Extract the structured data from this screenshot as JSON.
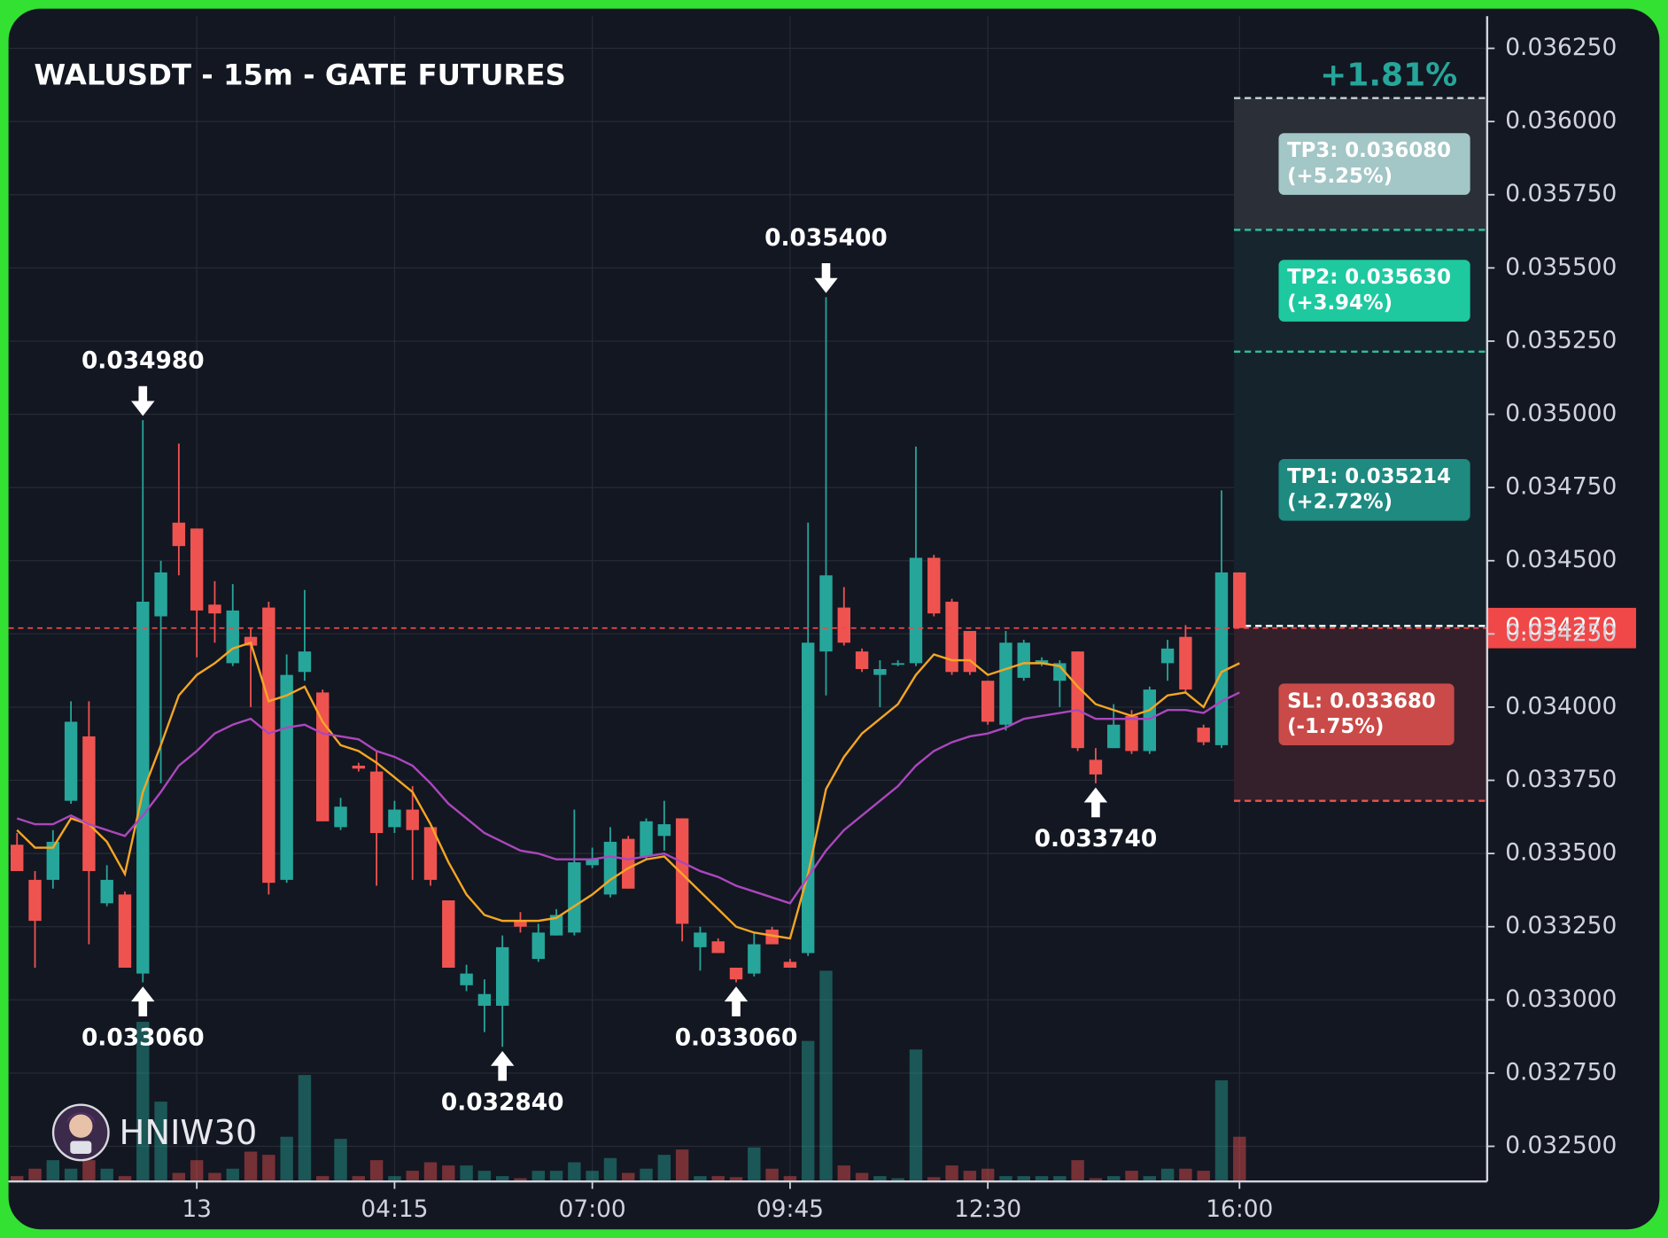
{
  "chart_data": {
    "type": "candlestick",
    "title": "WALUSDT - 15m - GATE FUTURES",
    "change": "+1.81%",
    "watermark": "HNIW30",
    "categories": [
      null,
      null,
      null,
      null,
      null,
      null,
      null,
      null,
      null,
      null,
      "13",
      null,
      null,
      null,
      null,
      null,
      null,
      null,
      null,
      null,
      null,
      "04:15",
      null,
      null,
      null,
      null,
      null,
      null,
      null,
      null,
      null,
      null,
      "07:00",
      null,
      null,
      null,
      null,
      null,
      null,
      null,
      null,
      null,
      null,
      "09:45",
      null,
      null,
      null,
      null,
      null,
      null,
      null,
      null,
      null,
      null,
      "12:30",
      null,
      null,
      null,
      null,
      null,
      null,
      null,
      null,
      null,
      null,
      null,
      null,
      null,
      "16:00"
    ],
    "open": [
      0.03353,
      0.03341,
      0.03341,
      0.03368,
      0.0339,
      0.03333,
      0.03336,
      0.03309,
      0.03431,
      0.03463,
      0.03461,
      0.03435,
      0.03415,
      0.03424,
      0.03434,
      0.03341,
      0.03412,
      0.03405,
      0.03359,
      0.0338,
      0.03378,
      0.03359,
      0.03365,
      0.03359,
      0.03334,
      0.03305,
      0.03298,
      0.03298,
      0.03327,
      0.03314,
      0.03322,
      0.03323,
      0.03346,
      0.03336,
      0.03355,
      0.03349,
      0.03356,
      0.03362,
      0.03318,
      0.0332,
      0.03311,
      0.03309,
      0.03324,
      0.03313,
      0.03316,
      0.03419,
      0.03434,
      0.03419,
      0.03411,
      0.03415,
      0.03415,
      0.03451,
      0.03436,
      0.03426,
      0.03409,
      0.03394,
      0.0341,
      0.03415,
      0.03409,
      0.03419,
      0.03382,
      0.03386,
      0.03397,
      0.03385,
      0.03415,
      0.03424,
      0.03393,
      0.03387,
      0.03446
    ],
    "high": [
      0.03357,
      0.03344,
      0.03358,
      0.03402,
      0.03402,
      0.03346,
      0.03337,
      0.03498,
      0.0345,
      0.0349,
      0.03461,
      0.03443,
      0.03442,
      0.03427,
      0.03436,
      0.03418,
      0.0344,
      0.03406,
      0.03369,
      0.03381,
      0.03385,
      0.03368,
      0.03373,
      0.03359,
      0.03334,
      0.03312,
      0.03307,
      0.03322,
      0.0333,
      0.03326,
      0.03331,
      0.03365,
      0.03352,
      0.03359,
      0.03356,
      0.03362,
      0.03368,
      0.03362,
      0.03325,
      0.03321,
      0.03311,
      0.03323,
      0.03325,
      0.03314,
      0.03463,
      0.0354,
      0.03441,
      0.0342,
      0.03416,
      0.03416,
      0.03489,
      0.03452,
      0.03437,
      0.03426,
      0.03409,
      0.03426,
      0.03423,
      0.03417,
      0.03416,
      0.03419,
      0.03386,
      0.03401,
      0.03399,
      0.03407,
      0.03423,
      0.03428,
      0.03394,
      0.03474,
      0.03446
    ],
    "low": [
      0.03344,
      0.03311,
      0.03338,
      0.03367,
      0.03319,
      0.03332,
      0.03311,
      0.03306,
      0.03374,
      0.03445,
      0.03417,
      0.03422,
      0.03414,
      0.034,
      0.03336,
      0.0334,
      0.03409,
      0.03361,
      0.03358,
      0.03378,
      0.03339,
      0.03357,
      0.03341,
      0.03339,
      0.03311,
      0.03303,
      0.03289,
      0.03284,
      0.03323,
      0.03313,
      0.03322,
      0.03322,
      0.03345,
      0.03335,
      0.03338,
      0.03348,
      0.03351,
      0.0332,
      0.0331,
      0.03316,
      0.03306,
      0.03308,
      0.03319,
      0.03311,
      0.03315,
      0.03404,
      0.03421,
      0.03412,
      0.034,
      0.03414,
      0.03414,
      0.03431,
      0.03411,
      0.03411,
      0.03394,
      0.03392,
      0.03409,
      0.03414,
      0.034,
      0.03385,
      0.03374,
      0.03386,
      0.03384,
      0.03384,
      0.03409,
      0.03405,
      0.03387,
      0.03386,
      0.03427
    ],
    "close": [
      0.03344,
      0.03327,
      0.03354,
      0.03395,
      0.03344,
      0.03341,
      0.03311,
      0.03436,
      0.03446,
      0.03455,
      0.03433,
      0.03432,
      0.03433,
      0.03421,
      0.0334,
      0.03411,
      0.03419,
      0.03361,
      0.03366,
      0.03379,
      0.03357,
      0.03365,
      0.03358,
      0.03341,
      0.03311,
      0.03309,
      0.03302,
      0.03318,
      0.03325,
      0.03323,
      0.03329,
      0.03347,
      0.03348,
      0.03354,
      0.03338,
      0.03361,
      0.0336,
      0.03326,
      0.03323,
      0.03316,
      0.03307,
      0.03319,
      0.03319,
      0.03311,
      0.03422,
      0.03445,
      0.03422,
      0.03413,
      0.03413,
      0.03415,
      0.03451,
      0.03432,
      0.03412,
      0.03412,
      0.03395,
      0.03422,
      0.03422,
      0.03416,
      0.03415,
      0.03386,
      0.03377,
      0.03394,
      0.03385,
      0.03406,
      0.0342,
      0.03406,
      0.03388,
      0.03446,
      0.03427
    ],
    "volume": [
      5,
      12,
      20,
      12,
      20,
      12,
      5,
      150,
      75,
      8,
      20,
      8,
      12,
      28,
      25,
      42,
      100,
      5,
      40,
      5,
      20,
      5,
      10,
      18,
      15,
      15,
      10,
      5,
      3,
      10,
      10,
      18,
      10,
      22,
      8,
      12,
      25,
      30,
      5,
      5,
      4,
      32,
      12,
      5,
      132,
      198,
      15,
      8,
      5,
      3,
      124,
      4,
      15,
      10,
      12,
      5,
      5,
      5,
      5,
      20,
      3,
      5,
      10,
      5,
      12,
      12,
      10,
      95,
      42
    ],
    "volume_ylim": [
      0,
      1095
    ],
    "up_color": "#26a69a",
    "down_color": "#ef5350",
    "moving_averages": [
      {
        "color": "#f5a623",
        "values": [
          0.03358,
          0.03352,
          0.03352,
          0.03362,
          0.0336,
          0.03354,
          0.03343,
          0.03371,
          0.03387,
          0.03404,
          0.03411,
          0.03415,
          0.0342,
          0.03422,
          0.03402,
          0.03404,
          0.03407,
          0.03395,
          0.03387,
          0.03385,
          0.03381,
          0.03376,
          0.03371,
          0.0336,
          0.03347,
          0.03336,
          0.03329,
          0.03327,
          0.03327,
          0.03327,
          0.03328,
          0.03332,
          0.03336,
          0.03341,
          0.03345,
          0.03348,
          0.03349,
          0.03343,
          0.03337,
          0.03331,
          0.03325,
          0.03323,
          0.03322,
          0.03321,
          0.03343,
          0.03372,
          0.03383,
          0.03391,
          0.03396,
          0.03401,
          0.03411,
          0.03418,
          0.03416,
          0.03416,
          0.03411,
          0.03413,
          0.03415,
          0.03415,
          0.03414,
          0.03407,
          0.03401,
          0.03399,
          0.03397,
          0.03399,
          0.03404,
          0.03405,
          0.034,
          0.03412,
          0.03415
        ]
      },
      {
        "color": "#ab47bc",
        "values": [
          0.03362,
          0.0336,
          0.0336,
          0.03363,
          0.0336,
          0.03358,
          0.03356,
          0.03363,
          0.03371,
          0.0338,
          0.03385,
          0.03391,
          0.03394,
          0.03396,
          0.03391,
          0.03393,
          0.03394,
          0.03391,
          0.0339,
          0.03389,
          0.03385,
          0.03383,
          0.0338,
          0.03374,
          0.03367,
          0.03362,
          0.03357,
          0.03354,
          0.03351,
          0.0335,
          0.03348,
          0.03348,
          0.03348,
          0.03349,
          0.03348,
          0.03349,
          0.0335,
          0.03347,
          0.03344,
          0.03342,
          0.03339,
          0.03337,
          0.03335,
          0.03333,
          0.03342,
          0.03351,
          0.03358,
          0.03363,
          0.03368,
          0.03373,
          0.0338,
          0.03385,
          0.03388,
          0.0339,
          0.03391,
          0.03393,
          0.03396,
          0.03397,
          0.03398,
          0.03399,
          0.03396,
          0.03396,
          0.03396,
          0.03396,
          0.03399,
          0.03399,
          0.03398,
          0.03402,
          0.03405
        ]
      }
    ],
    "annotations": [
      {
        "x": 7,
        "value": 0.03498,
        "label": "0.034980",
        "side": "high"
      },
      {
        "x": 7,
        "value": 0.03306,
        "label": "0.033060",
        "side": "low"
      },
      {
        "x": 27,
        "value": 0.03284,
        "label": "0.032840",
        "side": "low"
      },
      {
        "x": 40,
        "value": 0.03306,
        "label": "0.033060",
        "side": "low"
      },
      {
        "x": 45,
        "value": 0.0354,
        "label": "0.035400",
        "side": "high"
      },
      {
        "x": 60,
        "value": 0.03374,
        "label": "0.033740",
        "side": "low"
      }
    ],
    "last_price": {
      "value": 0.03427,
      "label": "0.034270",
      "color": "#f04848"
    },
    "targets": [
      {
        "label": "TP3: 0.036080",
        "change": "(+5.25%)",
        "value": 0.03608,
        "color": "#a3c6c6",
        "line_color": "#c9d4d8",
        "zone_color": "#2a2f38"
      },
      {
        "label": "TP2: 0.035630",
        "change": "(+3.94%)",
        "value": 0.03563,
        "color": "#1ec9a0",
        "line_color": "#2bbfa0",
        "zone_color": "#17262e"
      },
      {
        "label": "TP1: 0.035214",
        "change": "(+2.72%)",
        "value": 0.035214,
        "color": "#1e8a80",
        "line_color": "#2bbfa0",
        "zone_color": "#14232c"
      }
    ],
    "stop": {
      "label": "SL: 0.033680",
      "change": "(-1.75%)",
      "value": 0.03368,
      "color": "#c94a48",
      "line_color": "#ef5350",
      "zone_color": "#34202a"
    },
    "ylim": [
      0.03238,
      0.03636
    ],
    "yticks": [
      {
        "value": 0.03625,
        "label": "0.036250"
      },
      {
        "value": 0.036,
        "label": "0.036000"
      },
      {
        "value": 0.03575,
        "label": "0.035750"
      },
      {
        "value": 0.0355,
        "label": "0.035500"
      },
      {
        "value": 0.03525,
        "label": "0.035250"
      },
      {
        "value": 0.035,
        "label": "0.035000"
      },
      {
        "value": 0.03475,
        "label": "0.034750"
      },
      {
        "value": 0.0345,
        "label": "0.034500"
      },
      {
        "value": 0.03425,
        "label": "0.034250"
      },
      {
        "value": 0.034,
        "label": "0.034000"
      },
      {
        "value": 0.03375,
        "label": "0.033750"
      },
      {
        "value": 0.0335,
        "label": "0.033500"
      },
      {
        "value": 0.03325,
        "label": "0.033250"
      },
      {
        "value": 0.033,
        "label": "0.033000"
      },
      {
        "value": 0.03275,
        "label": "0.032750"
      },
      {
        "value": 0.0325,
        "label": "0.032500"
      }
    ],
    "grid": true
  }
}
